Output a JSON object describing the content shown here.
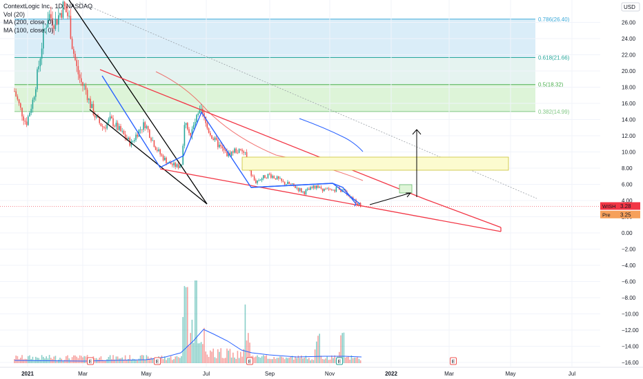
{
  "legend": {
    "title": "ContextLogic Inc., 1D, NASDAQ",
    "vol": "Vol (20)",
    "ma200": "MA (200, close, 0)",
    "ma100": "MA (100, close, 0)"
  },
  "currency_badge": "USD",
  "price_labels": [
    {
      "name": "WISH",
      "value": "3.28",
      "color": "#f23645"
    },
    {
      "name": "Pre",
      "value": "3.25",
      "color": "#f6a05b"
    }
  ],
  "chart_data": {
    "type": "candlestick",
    "title": "ContextLogic Inc., 1D, NASDAQ",
    "y_axis_ticks": [
      "26.00",
      "24.00",
      "22.00",
      "20.00",
      "18.00",
      "16.00",
      "14.00",
      "12.00",
      "10.00",
      "8.00",
      "6.00",
      "4.00",
      "2.00",
      "0.00",
      "−2.00",
      "−4.00",
      "−6.00",
      "−8.00",
      "−10.00",
      "−12.00",
      "−14.00",
      "−16.00"
    ],
    "x_axis_ticks": [
      "2021",
      "Mar",
      "May",
      "Jul",
      "Sep",
      "Nov",
      "2022",
      "Mar",
      "May",
      "Jul"
    ],
    "ylim": [
      -16.5,
      28
    ],
    "last_price": 3.28,
    "premarket_price": 3.25,
    "fib_levels": [
      {
        "ratio": "0.786",
        "price": 26.4,
        "label": "0.786(26.40)",
        "color": "#3aa8d8",
        "fill": "#d6ebf7"
      },
      {
        "ratio": "0.618",
        "price": 21.66,
        "label": "0.618(21.66)",
        "color": "#26a69a",
        "fill": "#e2f2ee"
      },
      {
        "ratio": "0.5",
        "price": 18.32,
        "label": "0.5(18.32)",
        "color": "#4caf50",
        "fill": "#d9f3d4"
      },
      {
        "ratio": "0.382",
        "price": 14.99,
        "label": "0.382(14.99)",
        "color": "#81c784",
        "fill": "#d9f3d4"
      }
    ],
    "earnings_markers": [
      "E",
      "E",
      "E",
      "E",
      "E"
    ],
    "price_series": [
      {
        "date": "Jan 2021",
        "close": 17.5
      },
      {
        "date": "Feb 2021",
        "close": 26.8
      },
      {
        "date": "Mar 2021",
        "close": 16.5
      },
      {
        "date": "Apr 2021",
        "close": 12.0
      },
      {
        "date": "May 2021",
        "close": 8.2
      },
      {
        "date": "Jun 2021",
        "close": 11.5
      },
      {
        "date": "Jul 2021",
        "close": 9.0
      },
      {
        "date": "Aug 2021",
        "close": 7.0
      },
      {
        "date": "Sep 2021",
        "close": 6.5
      },
      {
        "date": "Oct 2021",
        "close": 5.0
      },
      {
        "date": "Nov 2021",
        "close": 5.3
      },
      {
        "date": "Dec 2021",
        "close": 3.28
      }
    ]
  },
  "colors": {
    "up": "#26a69a",
    "down": "#ef5350",
    "ma_red": "#ef5350",
    "ma_blue": "#2962ff",
    "grid": "#f0f3fa",
    "axis_text": "#131722"
  }
}
